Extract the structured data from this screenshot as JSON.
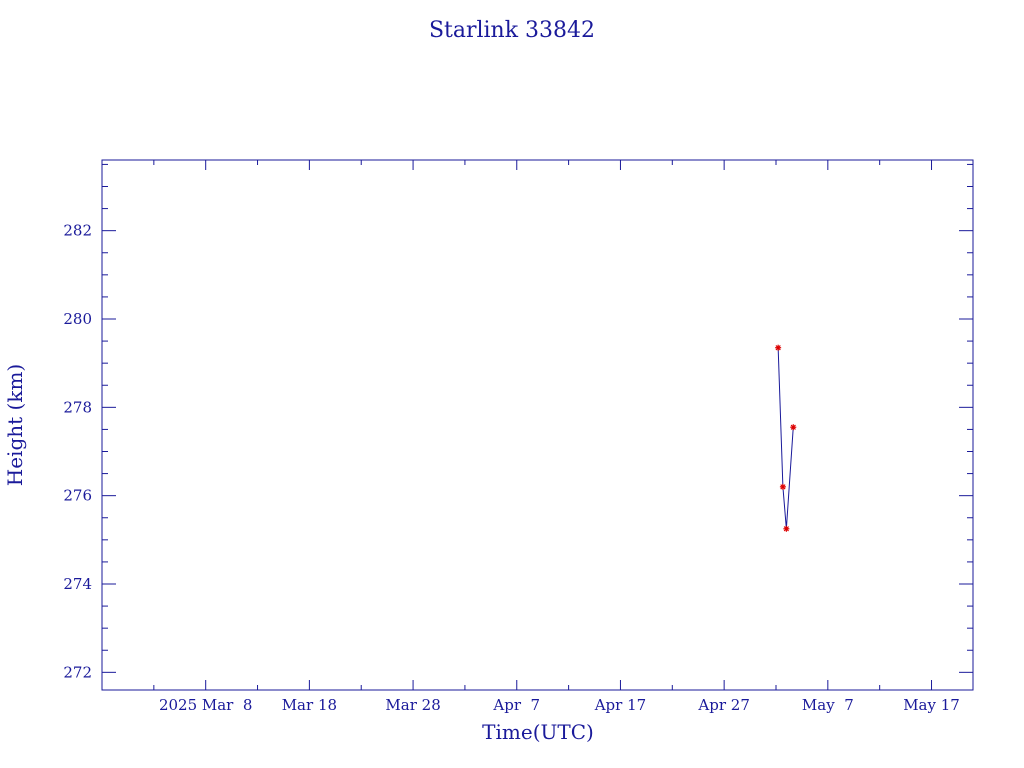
{
  "chart_data": {
    "type": "line",
    "title": "Starlink 33842",
    "xlabel": "Time(UTC)",
    "ylabel": "Height (km)",
    "x_tick_labels": [
      "2025 Mar  8",
      "Mar 18",
      "Mar 28",
      "Apr  7",
      "Apr 17",
      "Apr 27",
      "May  7",
      "May 17"
    ],
    "y_tick_labels": [
      "272",
      "274",
      "276",
      "278",
      "280",
      "282"
    ],
    "y_tick_values": [
      272,
      274,
      276,
      278,
      280,
      282
    ],
    "ylim": [
      271.6,
      283.6
    ],
    "xlim": [
      "2025-02-26",
      "2025-05-21"
    ],
    "grid": false,
    "series": [
      {
        "points": [
          {
            "x": "2025-05-02T05:00",
            "y": 279.35
          },
          {
            "x": "2025-05-02T16:00",
            "y": 276.2
          },
          {
            "x": "2025-05-03T00:00",
            "y": 275.25
          },
          {
            "x": "2025-05-03T16:00",
            "y": 277.55
          }
        ]
      }
    ]
  },
  "colors": {
    "axis": "#1a1a9a",
    "line": "#1a1a9a",
    "marker": "#dd0000"
  }
}
